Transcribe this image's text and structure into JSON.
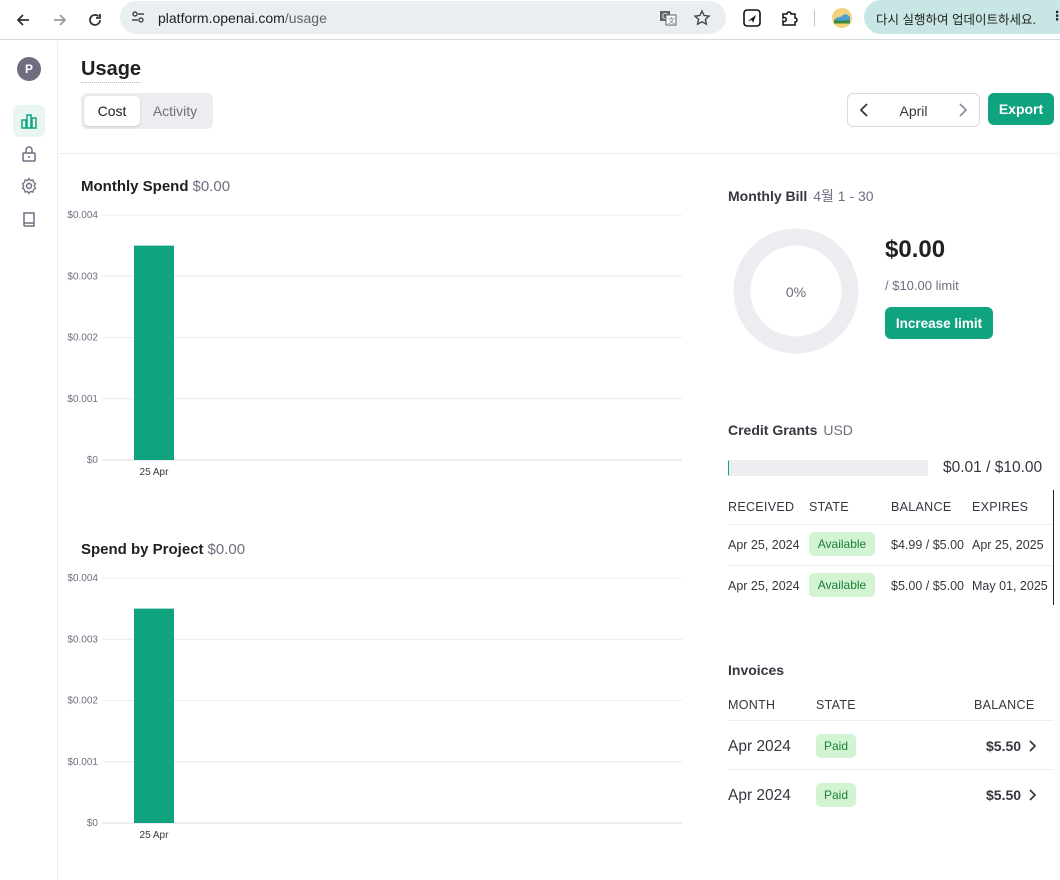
{
  "browser": {
    "url_domain": "platform.openai.com",
    "url_path": "/usage",
    "update_notice": "다시 실행하여 업데이트하세요.",
    "update_more": "⋮"
  },
  "rail": {
    "avatar_initial": "P"
  },
  "header": {
    "title": "Usage",
    "tabs": [
      {
        "label": "Cost"
      },
      {
        "label": "Activity"
      }
    ],
    "month": "April",
    "export_label": "Export"
  },
  "monthly_spend": {
    "title": "Monthly Spend",
    "amount": "$0.00"
  },
  "spend_by_project": {
    "title": "Spend by Project",
    "amount": "$0.00"
  },
  "chart_data": [
    {
      "type": "bar",
      "title": "Monthly Spend $0.00",
      "categories": [
        "25 Apr"
      ],
      "values": [
        0.0035
      ],
      "ylim": [
        0,
        0.004
      ],
      "yticks": [
        "$0",
        "$0.001",
        "$0.002",
        "$0.003",
        "$0.004"
      ],
      "color": "#10a37f",
      "grid": true
    },
    {
      "type": "bar",
      "title": "Spend by Project $0.00",
      "categories": [
        "25 Apr"
      ],
      "values": [
        0.0035
      ],
      "ylim": [
        0,
        0.004
      ],
      "yticks": [
        "$0",
        "$0.001",
        "$0.002",
        "$0.003",
        "$0.004"
      ],
      "color": "#10a37f",
      "grid": true
    }
  ],
  "monthly_bill": {
    "title": "Monthly Bill",
    "range": "4월 1 - 30",
    "percent_label": "0%",
    "percent": 0,
    "amount": "$0.00",
    "limit": "/ $10.00 limit",
    "increase_label": "Increase limit"
  },
  "credit_grants": {
    "title": "Credit Grants",
    "unit": "USD",
    "used_fraction": 0.001,
    "summary": "$0.01 / $10.00",
    "columns": [
      "RECEIVED",
      "STATE",
      "BALANCE",
      "EXPIRES"
    ],
    "rows": [
      {
        "received": "Apr 25, 2024",
        "state": "Available",
        "balance": "$4.99 / $5.00",
        "expires": "Apr 25, 2025"
      },
      {
        "received": "Apr 25, 2024",
        "state": "Available",
        "balance": "$5.00 / $5.00",
        "expires": "May 01, 2025"
      }
    ]
  },
  "invoices": {
    "title": "Invoices",
    "columns": [
      "MONTH",
      "STATE",
      "BALANCE"
    ],
    "rows": [
      {
        "month": "Apr 2024",
        "state": "Paid",
        "balance": "$5.50"
      },
      {
        "month": "Apr 2024",
        "state": "Paid",
        "balance": "$5.50"
      }
    ]
  },
  "colors": {
    "accent": "#10a37f",
    "badge_bg": "#d2f4d3",
    "badge_text": "#1a7f37"
  }
}
